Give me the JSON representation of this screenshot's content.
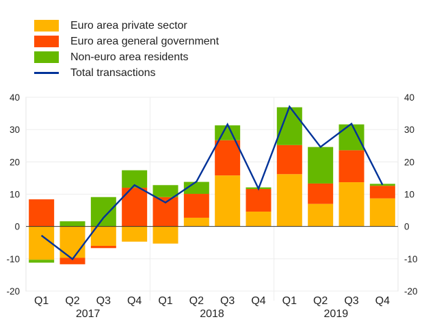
{
  "chart_data": {
    "type": "bar",
    "stacked": true,
    "title": "",
    "xlabel": "",
    "ylabel": "",
    "ylim": [
      -20,
      40
    ],
    "yticks": [
      -20,
      -10,
      0,
      10,
      20,
      30,
      40
    ],
    "ytick_labels": [
      "-20",
      "-10",
      "0",
      "10",
      "20",
      "30",
      "40"
    ],
    "grid": true,
    "legend_position": "top-left",
    "categories": [
      "Q1",
      "Q2",
      "Q3",
      "Q4",
      "Q1",
      "Q2",
      "Q3",
      "Q4",
      "Q1",
      "Q2",
      "Q3",
      "Q4"
    ],
    "year_groups": [
      {
        "label": "2017",
        "count": 4
      },
      {
        "label": "2018",
        "count": 4
      },
      {
        "label": "2019",
        "count": 4
      }
    ],
    "series": [
      {
        "name": "Euro area private sector",
        "type": "bar",
        "color": "#FFB400",
        "values": [
          -10.3,
          -9.7,
          -6.0,
          -4.7,
          -5.3,
          2.7,
          15.8,
          4.6,
          16.2,
          7.0,
          13.7,
          8.7
        ]
      },
      {
        "name": "Euro area general government",
        "type": "bar",
        "color": "#FF4B00",
        "values": [
          8.4,
          -2.0,
          -0.7,
          12.0,
          9.1,
          7.4,
          10.9,
          7.0,
          9.0,
          6.3,
          9.9,
          3.9
        ]
      },
      {
        "name": "Non-euro area residents",
        "type": "bar",
        "color": "#65B800",
        "values": [
          -0.9,
          1.6,
          9.1,
          5.4,
          3.7,
          3.7,
          4.6,
          0.5,
          11.7,
          11.3,
          8.0,
          0.6
        ]
      },
      {
        "name": "Total transactions",
        "type": "line",
        "color": "#003299",
        "values": [
          -2.8,
          -10.1,
          2.7,
          12.8,
          7.4,
          13.9,
          31.6,
          11.7,
          37.1,
          24.6,
          31.8,
          12.9
        ]
      }
    ]
  }
}
